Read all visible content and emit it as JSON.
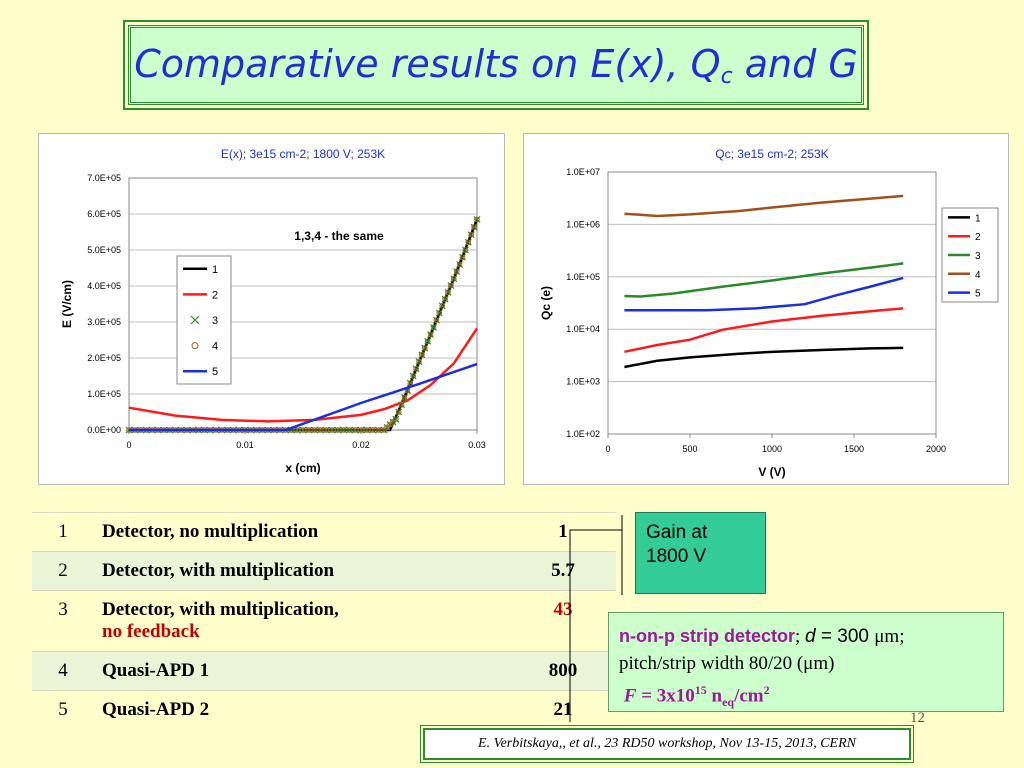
{
  "slide": {
    "title_main": "Comparative results on E(x), Q",
    "title_sub": "c",
    "title_end": " and G",
    "slide_number": "12"
  },
  "gain_callout": {
    "line1": "Gain at",
    "line2": "1800 V"
  },
  "table": {
    "rows": [
      {
        "index": "1",
        "desc": "Detector, no multiplication",
        "desc2": "",
        "gain": "1"
      },
      {
        "index": "2",
        "desc": "Detector, with multiplication",
        "desc2": "",
        "gain": "5.7"
      },
      {
        "index": "3",
        "desc": "Detector, with multiplication,",
        "desc2": "no feedback",
        "gain": "43"
      },
      {
        "index": "4",
        "desc": "Quasi-APD 1",
        "desc2": "",
        "gain": "800"
      },
      {
        "index": "5",
        "desc": "Quasi-APD 2",
        "desc2": "",
        "gain": "21"
      }
    ]
  },
  "info": {
    "head": "n-on-p strip detector",
    "sep": ";  ",
    "d_label": "d",
    "d_value": " = 300 ",
    "d_unit": "μm;",
    "line2": "pitch/strip width 80/20 (μm)",
    "f_label": "F",
    "f_eq": " = 3x10",
    "f_exp": "15",
    "f_n": " n",
    "f_sub": "eq",
    "f_unit": "/cm",
    "f_sq": "2"
  },
  "citation": "E. Verbitskaya,, et  al., 23 RD50 workshop, Nov 13-15, 2013, CERN",
  "chart_data": [
    {
      "type": "line",
      "title": "E(x); 3e15 cm-2; 1800 V; 253K",
      "xlabel": "x (cm)",
      "ylabel": "E (V/cm)",
      "xlim": [
        0,
        0.03
      ],
      "ylim": [
        0,
        700000
      ],
      "x_ticks": [
        "0",
        "0.01",
        "0.02",
        "0.03"
      ],
      "y_ticks": [
        "0.0E+00",
        "1.0E+05",
        "2.0E+05",
        "3.0E+05",
        "4.0E+05",
        "5.0E+05",
        "6.0E+05",
        "7.0E+05"
      ],
      "annotation": "1,3,4 - the same",
      "grid": true,
      "legend_position": "left-middle",
      "series": [
        {
          "name": "1",
          "color": "#000000",
          "style": "line",
          "x": [
            0,
            0.0225,
            0.024,
            0.026,
            0.028,
            0.03
          ],
          "y": [
            0,
            0,
            110000,
            265000,
            420000,
            585000
          ]
        },
        {
          "name": "2",
          "color": "#ff1a1a",
          "style": "line",
          "x": [
            0,
            0.004,
            0.008,
            0.012,
            0.016,
            0.02,
            0.022,
            0.024,
            0.026,
            0.028,
            0.03
          ],
          "y": [
            62000,
            40000,
            28000,
            24000,
            28000,
            42000,
            58000,
            82000,
            125000,
            185000,
            282000
          ]
        },
        {
          "name": "3",
          "color": "#2a8a2a",
          "style": "marker-x",
          "x": [
            0,
            0.002,
            0.004,
            0.006,
            0.008,
            0.01,
            0.012,
            0.014,
            0.016,
            0.018,
            0.02,
            0.022,
            0.023,
            0.024,
            0.025,
            0.026,
            0.027,
            0.028,
            0.029,
            0.03
          ],
          "y": [
            0,
            0,
            0,
            0,
            0,
            0,
            0,
            0,
            0,
            0,
            0,
            0,
            30000,
            110000,
            190000,
            265000,
            345000,
            420000,
            500000,
            585000
          ]
        },
        {
          "name": "4",
          "color": "#b05a1a",
          "style": "marker-o",
          "x": [
            0,
            0.002,
            0.004,
            0.006,
            0.008,
            0.01,
            0.012,
            0.014,
            0.016,
            0.018,
            0.02,
            0.022,
            0.023,
            0.024,
            0.025,
            0.026,
            0.027,
            0.028,
            0.029,
            0.03
          ],
          "y": [
            0,
            0,
            0,
            0,
            0,
            0,
            0,
            0,
            0,
            0,
            0,
            0,
            30000,
            110000,
            190000,
            265000,
            345000,
            420000,
            500000,
            585000
          ]
        },
        {
          "name": "5",
          "color": "#1a2ee0",
          "style": "line",
          "x": [
            0,
            0.0135,
            0.02,
            0.025,
            0.03
          ],
          "y": [
            0,
            0,
            75000,
            128000,
            183000
          ]
        }
      ]
    },
    {
      "type": "line",
      "title": "Qc; 3e15 cm-2; 253K",
      "xlabel": "V (V)",
      "ylabel": "Qc (e)",
      "xlim": [
        0,
        2000
      ],
      "ylim": [
        100,
        10000000
      ],
      "log_y": true,
      "x_ticks": [
        "0",
        "500",
        "1000",
        "1500",
        "2000"
      ],
      "y_ticks": [
        "1.0E+02",
        "1.0E+03",
        "1.0E+04",
        "1.0E+05",
        "1.0E+06",
        "1.0E+07"
      ],
      "grid": true,
      "legend_position": "right",
      "series": [
        {
          "name": "1",
          "color": "#000000",
          "x": [
            100,
            300,
            500,
            800,
            1000,
            1300,
            1600,
            1800
          ],
          "y": [
            1900,
            2500,
            2900,
            3400,
            3700,
            4000,
            4300,
            4400
          ]
        },
        {
          "name": "2",
          "color": "#ff1a1a",
          "x": [
            100,
            300,
            500,
            700,
            1000,
            1300,
            1600,
            1800
          ],
          "y": [
            3700,
            5000,
            6300,
            9800,
            14000,
            18000,
            22000,
            25000
          ]
        },
        {
          "name": "3",
          "color": "#2a8a2a",
          "x": [
            100,
            200,
            400,
            700,
            1000,
            1300,
            1600,
            1800
          ],
          "y": [
            43000,
            42000,
            48000,
            65000,
            85000,
            115000,
            150000,
            180000
          ]
        },
        {
          "name": "4",
          "color": "#a0501a",
          "x": [
            100,
            300,
            500,
            800,
            1000,
            1300,
            1600,
            1800
          ],
          "y": [
            1600000,
            1450000,
            1550000,
            1800000,
            2100000,
            2600000,
            3100000,
            3500000
          ]
        },
        {
          "name": "5",
          "color": "#1a2ee0",
          "x": [
            100,
            300,
            600,
            900,
            1200,
            1400,
            1600,
            1800
          ],
          "y": [
            23000,
            23000,
            23000,
            25000,
            30000,
            45000,
            65000,
            95000
          ]
        }
      ]
    }
  ]
}
